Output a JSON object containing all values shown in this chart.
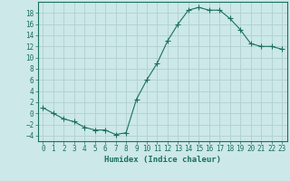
{
  "x": [
    0,
    1,
    2,
    3,
    4,
    5,
    6,
    7,
    8,
    9,
    10,
    11,
    12,
    13,
    14,
    15,
    16,
    17,
    18,
    19,
    20,
    21,
    22,
    23
  ],
  "y": [
    1,
    0,
    -1,
    -1.5,
    -2.5,
    -3,
    -3,
    -3.8,
    -3.5,
    2.5,
    6,
    9,
    13,
    16,
    18.5,
    19,
    18.5,
    18.5,
    17,
    15,
    12.5,
    12,
    12,
    11.5
  ],
  "line_color": "#1a7060",
  "marker": "+",
  "marker_size": 4,
  "bg_color": "#cce8e8",
  "grid_color": "#b0d0d0",
  "xlabel": "Humidex (Indice chaleur)",
  "xlim": [
    -0.5,
    23.5
  ],
  "ylim": [
    -5,
    20
  ],
  "yticks": [
    -4,
    -2,
    0,
    2,
    4,
    6,
    8,
    10,
    12,
    14,
    16,
    18
  ],
  "xticks": [
    0,
    1,
    2,
    3,
    4,
    5,
    6,
    7,
    8,
    9,
    10,
    11,
    12,
    13,
    14,
    15,
    16,
    17,
    18,
    19,
    20,
    21,
    22,
    23
  ],
  "tick_color": "#1a7060",
  "axis_color": "#1a7060",
  "xlabel_fontsize": 6.5,
  "tick_fontsize": 5.5
}
